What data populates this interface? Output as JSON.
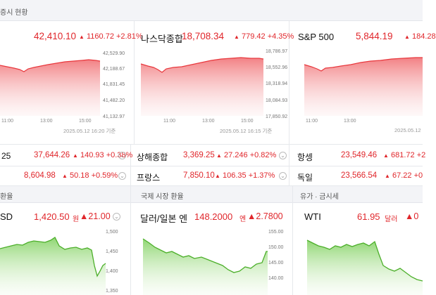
{
  "section_top": {
    "title": "증시 현황"
  },
  "indices": [
    {
      "name": "",
      "value": "42,410.10",
      "change": "1160.72",
      "pct": "+2.81%",
      "yticks": [
        "42,529.90",
        "42,188.67",
        "41,831.45",
        "41,482.20",
        "41,132.97"
      ],
      "xticks": [
        "11:00",
        "13:00",
        "15:00"
      ],
      "stamp": "2025.05.12 16:20 기준"
    },
    {
      "name": "나스닥종합",
      "value": "18,708.34",
      "change": "779.42",
      "pct": "+4.35%",
      "yticks": [
        "18,786.97",
        "18,552.96",
        "18,318.94",
        "18,084.93",
        "17,850.92"
      ],
      "xticks": [
        "11:00",
        "13:00",
        "15:00"
      ],
      "stamp": "2025.05.12 16:15 기준"
    },
    {
      "name": "S&P 500",
      "value": "5,844.19",
      "change": "184.28",
      "pct": "",
      "yticks": [],
      "xticks": [
        "11:00",
        "13:00"
      ],
      "stamp": "2025.05.12"
    }
  ],
  "summary_rows": [
    [
      {
        "name": "25",
        "value": "37,644.26",
        "change": "140.93",
        "pct": "+0.38%"
      },
      {
        "name": "상해종합",
        "value": "3,369.25",
        "change": "27.246",
        "pct": "+0.82%"
      },
      {
        "name": "항셍",
        "value": "23,549.46",
        "change": "681.72",
        "pct": "+2"
      }
    ],
    [
      {
        "name": "",
        "value": "8,604.98",
        "change": "50.18",
        "pct": "+0.59%"
      },
      {
        "name": "프랑스",
        "value": "7,850.10",
        "change": "106.35",
        "pct": "+1.37%"
      },
      {
        "name": "독일",
        "value": "23,566.54",
        "change": "67.22",
        "pct": "+0"
      }
    ]
  ],
  "fx_headers": [
    "환율",
    "국제 시장 환율",
    "유가 · 금시세"
  ],
  "fx": [
    {
      "name": "SD",
      "value": "1,420.50",
      "unit": "원",
      "change": "21.00",
      "yticks": [
        "1,500",
        "1,450",
        "1,400",
        "1,350"
      ]
    },
    {
      "name": "달러/일본 엔",
      "value": "148.2000",
      "unit": "엔",
      "change": "2.7800",
      "yticks": [
        "155.00",
        "150.00",
        "145.00",
        "140.00"
      ]
    },
    {
      "name": "WTI",
      "value": "61.95",
      "unit": "달러",
      "change": "0",
      "yticks": []
    }
  ],
  "colors": {
    "up": "#e0262b",
    "line_red": "#e8383d",
    "line_green": "#4caf2a"
  },
  "icons": {
    "more": "chevron-down-icon",
    "triangle": "up-triangle-icon"
  }
}
